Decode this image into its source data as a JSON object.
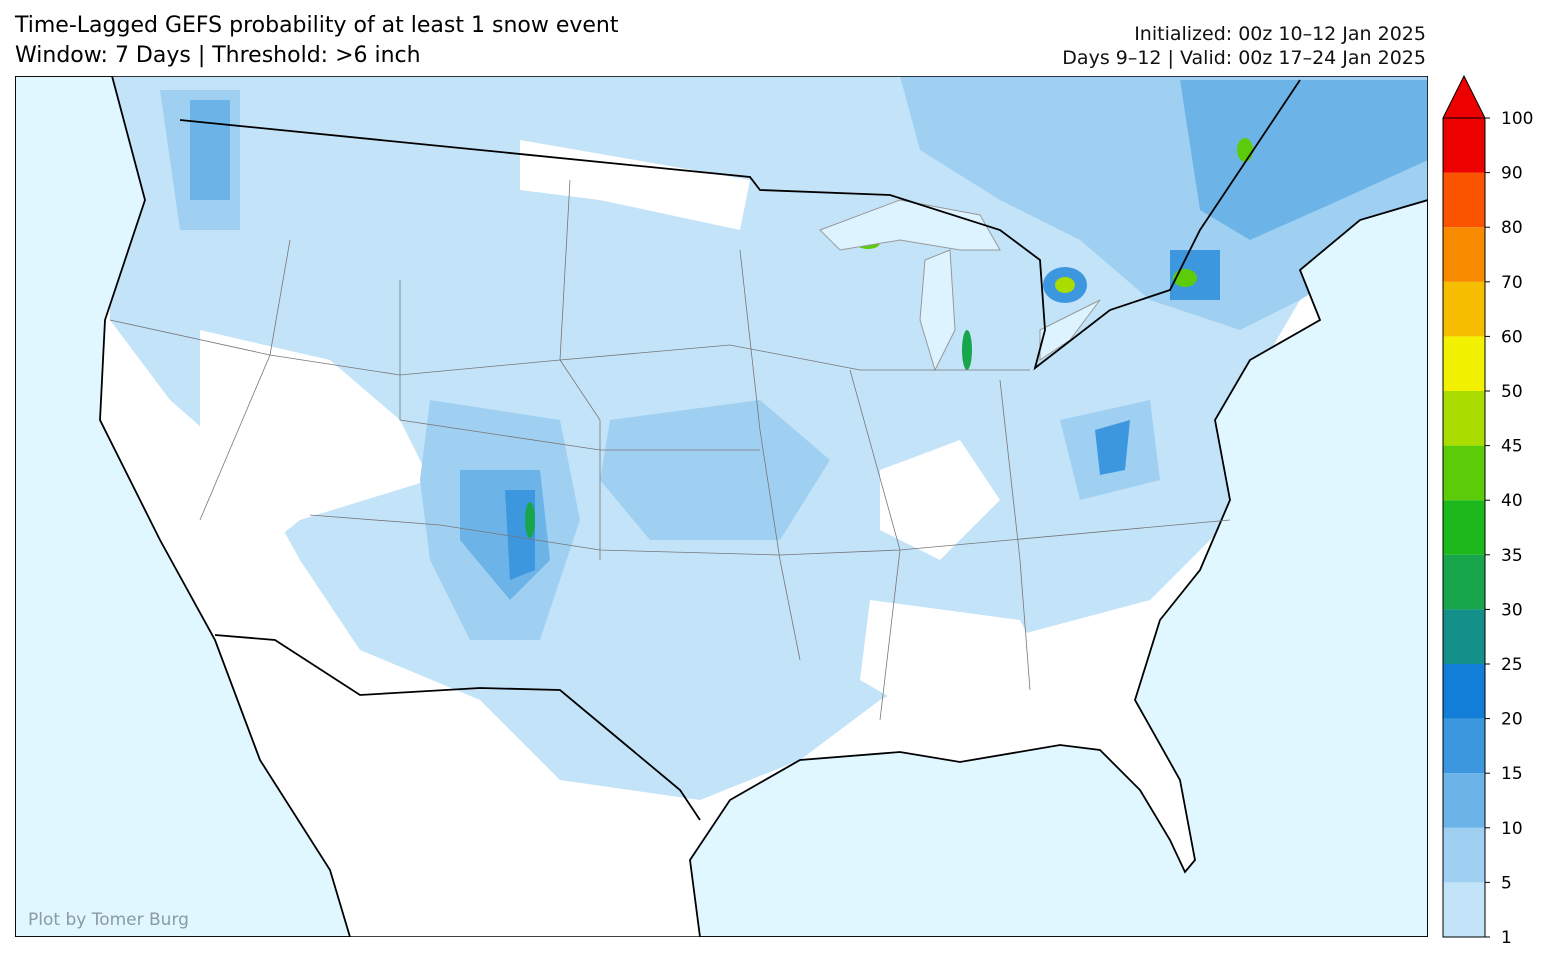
{
  "header": {
    "title": "Time-Lagged GEFS probability of at least 1 snow event",
    "subtitle": "Window: 7 Days | Threshold: >6 inch",
    "initialized": "Initialized: 00z 10–12 Jan 2025",
    "valid": "Days 9–12 | Valid: 00z 17–24 Jan 2025"
  },
  "credit": "Plot by Tomer Burg",
  "colorbar": {
    "ticks": [
      1,
      5,
      10,
      15,
      20,
      25,
      30,
      35,
      40,
      45,
      50,
      60,
      70,
      80,
      90,
      100
    ],
    "colors": [
      "#c3e3f8",
      "#9fd0f2",
      "#6cb4e8",
      "#3c97de",
      "#127ed8",
      "#13908a",
      "#17a64c",
      "#1cb81c",
      "#5ccc0a",
      "#abdc00",
      "#f2f200",
      "#f7be00",
      "#f88a00",
      "#fb5400",
      "#ec0000"
    ]
  }
}
